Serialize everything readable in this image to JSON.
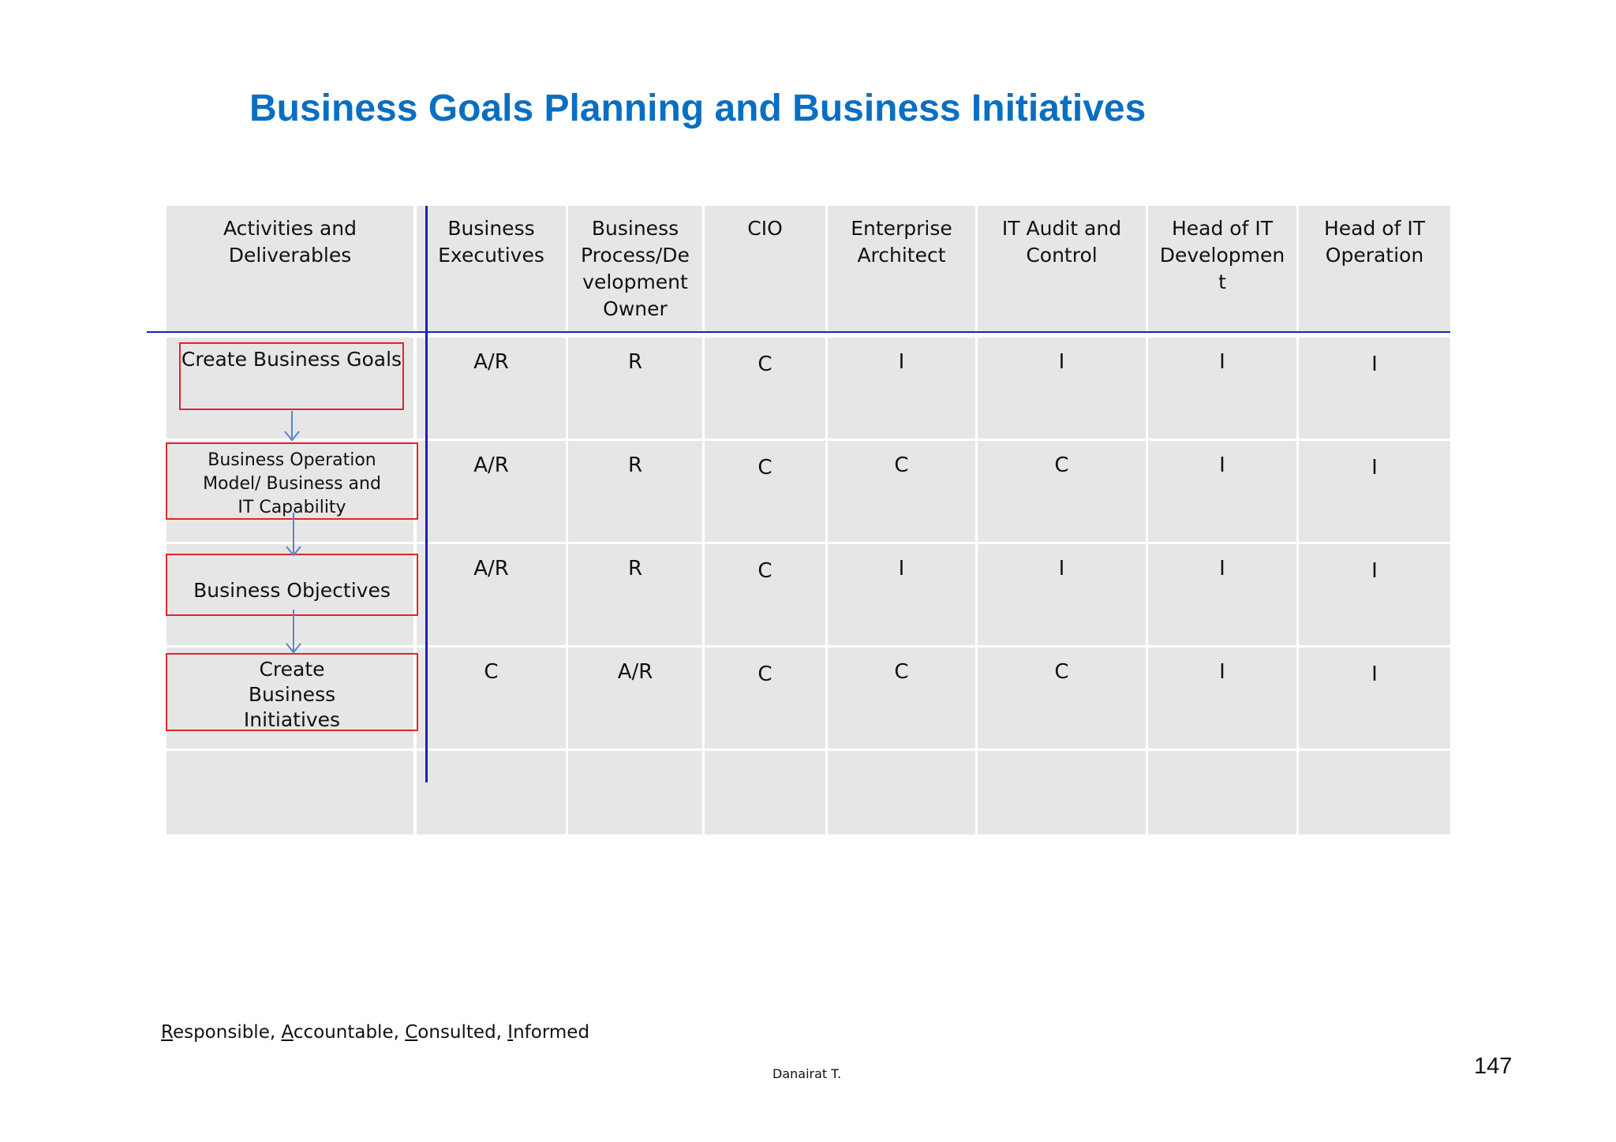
{
  "title": "Business Goals Planning and Business Initiatives",
  "table": {
    "columns": [
      "Activities and Deliverables",
      "Business Executives",
      "Business Process/De velopment Owner",
      "CIO",
      "Enterprise Architect",
      "IT Audit and Control",
      "Head of IT Developmen t",
      "Head of IT Operation"
    ],
    "rows": [
      {
        "activity": "Create Business Goals",
        "values": [
          "A/R",
          "R",
          "C",
          "I",
          "I",
          "I",
          "I"
        ]
      },
      {
        "activity": "Business Operation Model/ Business and IT Capability",
        "values": [
          "A/R",
          "R",
          "C",
          "C",
          "C",
          "I",
          "I"
        ]
      },
      {
        "activity": "Business Objectives",
        "values": [
          "A/R",
          "R",
          "C",
          "I",
          "I",
          "I",
          "I"
        ]
      },
      {
        "activity": "Create Business Initiatives",
        "values": [
          "C",
          "A/R",
          "C",
          "C",
          "C",
          "I",
          "I"
        ]
      }
    ]
  },
  "legend": {
    "r": "R",
    "r_rest": "esponsible, ",
    "a": "A",
    "a_rest": "ccountable, ",
    "c": "C",
    "c_rest": "onsulted, ",
    "i": "I",
    "i_rest": "nformed"
  },
  "author": "Danairat T.",
  "page_number": "147",
  "colors": {
    "title": "#0a6fc2",
    "cell_bg": "#e7e6e7",
    "box_border": "#e0252b",
    "divider": "#1b1ec2",
    "arrow": "#5b84c4"
  }
}
